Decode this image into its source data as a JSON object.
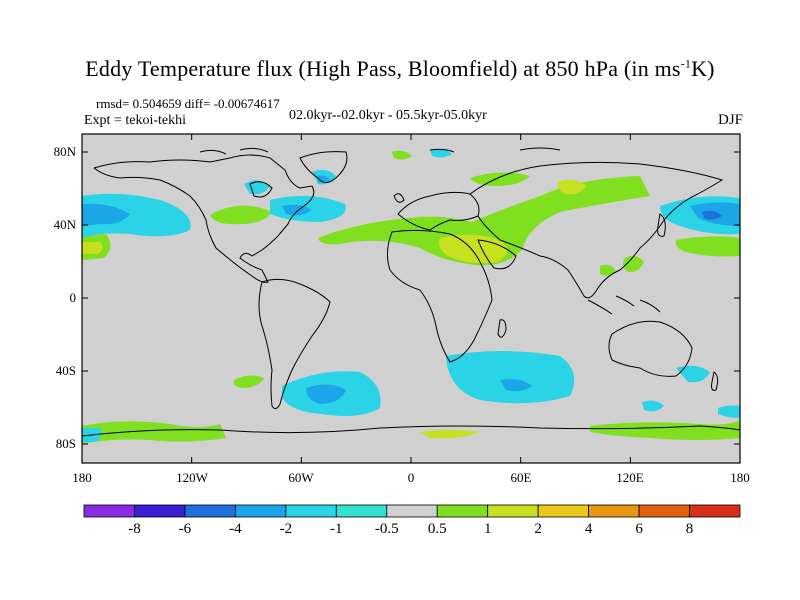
{
  "title_main": "Eddy Temperature flux (High Pass, Bloomfield) at 850 hPa (in ms",
  "title_sup": "-1",
  "title_end": "K)",
  "stats_text": "rmsd= 0.504659 diff= -0.00674617",
  "expt_text": "Expt = tekoi-tekhi",
  "period_text": "02.0kyr--02.0kyr - 05.5kyr-05.0kyr",
  "season_text": "DJF",
  "y_ticks": [
    "80N",
    "40N",
    "0",
    "40S",
    "80S"
  ],
  "x_ticks": [
    "180",
    "120W",
    "60W",
    "0",
    "60E",
    "120E",
    "180"
  ],
  "colorbar": {
    "labels": [
      "-8",
      "-6",
      "-4",
      "-2",
      "-1",
      "-0.5",
      "0.5",
      "1",
      "2",
      "4",
      "6",
      "8"
    ],
    "colors": [
      "#8a2be2",
      "#3a1fd6",
      "#1f6fdc",
      "#1aa6e8",
      "#2ad4e6",
      "#34e0d0",
      "#d0d0d0",
      "#80e020",
      "#c8e020",
      "#e8c818",
      "#e89810",
      "#e06010",
      "#d83018"
    ]
  },
  "map_background_color": "#d0d0d0"
}
